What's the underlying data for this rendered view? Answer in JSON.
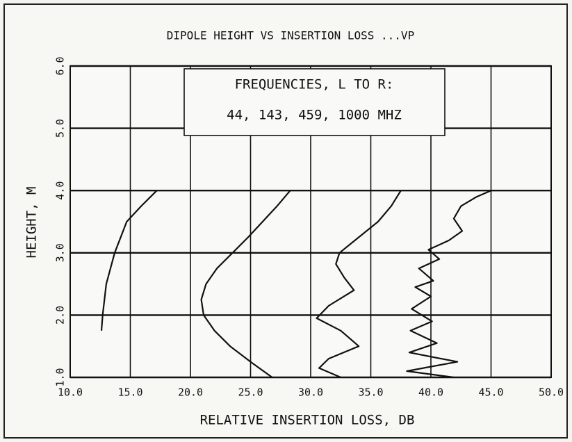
{
  "chart_data": {
    "type": "line",
    "title": "DIPOLE HEIGHT VS INSERTION LOSS ...VP",
    "xlabel": "RELATIVE INSERTION LOSS, DB",
    "ylabel": "HEIGHT, M",
    "annotations": [
      "FREQUENCIES, L TO R:",
      "44, 143, 459, 1000 MHZ"
    ],
    "xlim": [
      10,
      50
    ],
    "ylim": [
      1,
      6
    ],
    "xticks": [
      {
        "value": 10,
        "label": "10.0"
      },
      {
        "value": 15,
        "label": "15.0"
      },
      {
        "value": 20,
        "label": "20.0"
      },
      {
        "value": 25,
        "label": "25.0"
      },
      {
        "value": 30,
        "label": "30.0"
      },
      {
        "value": 35,
        "label": "35.0"
      },
      {
        "value": 40,
        "label": "40.0"
      },
      {
        "value": 45,
        "label": "45.0"
      },
      {
        "value": 50,
        "label": "50.0"
      }
    ],
    "yticks": [
      {
        "value": 1,
        "label": "1.0"
      },
      {
        "value": 2,
        "label": "2.0"
      },
      {
        "value": 3,
        "label": "3.0"
      },
      {
        "value": 4,
        "label": "4.0"
      },
      {
        "value": 5,
        "label": "5.0"
      },
      {
        "value": 6,
        "label": "6.0"
      }
    ],
    "grid": true,
    "series": [
      {
        "color": "#111111",
        "x": [
          12.6,
          12.7,
          13.0,
          13.7,
          14.7,
          15.9,
          17.2
        ],
        "values": [
          1.75,
          2.0,
          2.5,
          3.0,
          3.5,
          3.75,
          4.0
        ]
      },
      {
        "color": "#111111",
        "x": [
          26.8,
          25.0,
          23.3,
          22.0,
          21.1,
          20.9,
          21.3,
          22.2,
          23.5,
          24.8,
          26.0,
          27.2,
          28.3
        ],
        "values": [
          1.0,
          1.25,
          1.5,
          1.75,
          2.0,
          2.25,
          2.5,
          2.75,
          3.0,
          3.25,
          3.5,
          3.75,
          4.0
        ]
      },
      {
        "color": "#111111",
        "x": [
          32.5,
          30.7,
          31.5,
          34.0,
          32.5,
          30.5,
          31.5,
          33.6,
          32.8,
          32.1,
          32.4,
          34.0,
          35.6,
          36.7,
          37.5
        ],
        "values": [
          1.0,
          1.15,
          1.3,
          1.5,
          1.75,
          1.95,
          2.15,
          2.4,
          2.6,
          2.82,
          3.0,
          3.25,
          3.5,
          3.75,
          4.0
        ]
      },
      {
        "color": "#111111",
        "x": [
          41.9,
          38.0,
          42.2,
          38.2,
          40.5,
          38.3,
          40.1,
          38.4,
          40.0,
          38.7,
          40.2,
          39.0,
          40.7,
          39.8,
          41.5,
          42.6,
          41.9,
          42.5,
          43.8,
          45.0
        ],
        "values": [
          1.0,
          1.1,
          1.25,
          1.4,
          1.55,
          1.75,
          1.9,
          2.1,
          2.3,
          2.45,
          2.55,
          2.75,
          2.9,
          3.05,
          3.2,
          3.35,
          3.55,
          3.75,
          3.9,
          4.0
        ]
      }
    ]
  }
}
